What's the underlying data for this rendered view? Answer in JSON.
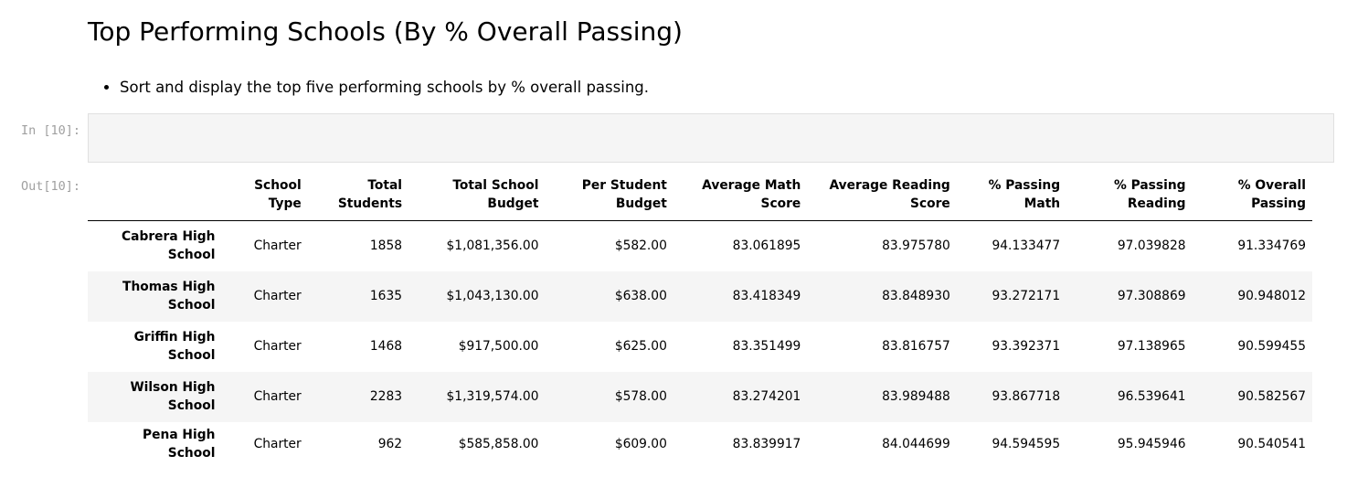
{
  "notebook": {
    "heading": "Top Performing Schools (By % Overall Passing)",
    "bullets": [
      "Sort and display the top five performing schools by % overall passing."
    ],
    "input_prompt": "In [10]:",
    "output_prompt": "Out[10]:"
  },
  "table": {
    "columns": [
      "",
      "School Type",
      "Total Students",
      "Total School Budget",
      "Per Student Budget",
      "Average Math Score",
      "Average Reading Score",
      "% Passing Math",
      "% Passing Reading",
      "% Overall Passing"
    ],
    "column_lines": [
      [
        "",
        ""
      ],
      [
        "School",
        "Type"
      ],
      [
        "Total",
        "Students"
      ],
      [
        "Total School",
        "Budget"
      ],
      [
        "Per Student",
        "Budget"
      ],
      [
        "Average Math",
        "Score"
      ],
      [
        "Average Reading",
        "Score"
      ],
      [
        "% Passing",
        "Math"
      ],
      [
        "% Passing",
        "Reading"
      ],
      [
        "% Overall",
        "Passing"
      ]
    ],
    "rows": [
      {
        "name_lines": [
          "Cabrera High",
          "School"
        ],
        "school_type": "Charter",
        "total_students": "1858",
        "total_budget": "$1,081,356.00",
        "per_student_budget": "$582.00",
        "avg_math": "83.061895",
        "avg_reading": "83.975780",
        "pct_math": "94.133477",
        "pct_reading": "97.039828",
        "pct_overall": "91.334769"
      },
      {
        "name_lines": [
          "Thomas High",
          "School"
        ],
        "school_type": "Charter",
        "total_students": "1635",
        "total_budget": "$1,043,130.00",
        "per_student_budget": "$638.00",
        "avg_math": "83.418349",
        "avg_reading": "83.848930",
        "pct_math": "93.272171",
        "pct_reading": "97.308869",
        "pct_overall": "90.948012"
      },
      {
        "name_lines": [
          "Griffin High",
          "School"
        ],
        "school_type": "Charter",
        "total_students": "1468",
        "total_budget": "$917,500.00",
        "per_student_budget": "$625.00",
        "avg_math": "83.351499",
        "avg_reading": "83.816757",
        "pct_math": "93.392371",
        "pct_reading": "97.138965",
        "pct_overall": "90.599455"
      },
      {
        "name_lines": [
          "Wilson High",
          "School"
        ],
        "school_type": "Charter",
        "total_students": "2283",
        "total_budget": "$1,319,574.00",
        "per_student_budget": "$578.00",
        "avg_math": "83.274201",
        "avg_reading": "83.989488",
        "pct_math": "93.867718",
        "pct_reading": "96.539641",
        "pct_overall": "90.582567"
      },
      {
        "name_lines": [
          "Pena High School"
        ],
        "school_type": "Charter",
        "total_students": "962",
        "total_budget": "$585,858.00",
        "per_student_budget": "$609.00",
        "avg_math": "83.839917",
        "avg_reading": "84.044699",
        "pct_math": "94.594595",
        "pct_reading": "95.945946",
        "pct_overall": "90.540541"
      }
    ]
  },
  "colors": {
    "prompt": "#a0a0a0",
    "code_cell_bg": "#f5f5f5",
    "stripe_bg": "#f5f5f5"
  }
}
